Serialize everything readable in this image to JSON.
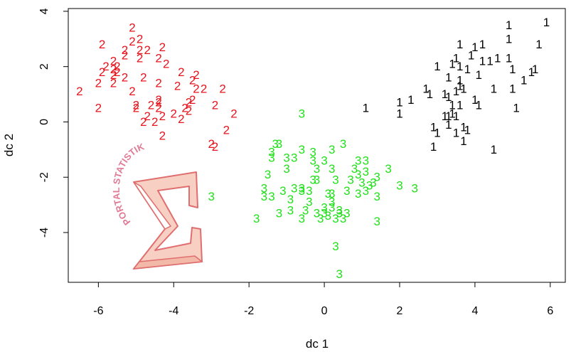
{
  "chart_data": {
    "type": "scatter",
    "title": "",
    "xlabel": "dc 1",
    "ylabel": "dc 2",
    "xlim": [
      -6.8,
      6.4
    ],
    "ylim": [
      -5.8,
      4.1
    ],
    "x_ticks": [
      -6,
      -4,
      -2,
      0,
      2,
      4,
      6
    ],
    "y_ticks": [
      -4,
      -2,
      0,
      2,
      4
    ],
    "x_tick_labels": [
      "-6",
      "-4",
      "-2",
      "0",
      "2",
      "4",
      "6"
    ],
    "y_tick_labels": [
      "-4",
      "-2",
      "0",
      "2",
      "4"
    ],
    "grid": false,
    "legend": "none",
    "series": [
      {
        "label": "1",
        "color": "#000000",
        "points": [
          [
            5.9,
            3.6
          ],
          [
            4.9,
            3.5
          ],
          [
            4.9,
            3.0
          ],
          [
            5.7,
            2.8
          ],
          [
            4.2,
            2.8
          ],
          [
            4.0,
            2.7
          ],
          [
            3.6,
            2.8
          ],
          [
            3.9,
            2.4
          ],
          [
            4.2,
            2.2
          ],
          [
            4.4,
            2.2
          ],
          [
            4.6,
            2.3
          ],
          [
            4.9,
            2.3
          ],
          [
            3.5,
            2.3
          ],
          [
            3.4,
            2.1
          ],
          [
            3.6,
            2.0
          ],
          [
            3.0,
            2.0
          ],
          [
            3.8,
            1.9
          ],
          [
            4.1,
            1.7
          ],
          [
            5.0,
            1.9
          ],
          [
            5.6,
            1.9
          ],
          [
            5.5,
            1.8
          ],
          [
            5.3,
            1.5
          ],
          [
            3.3,
            1.6
          ],
          [
            3.6,
            1.5
          ],
          [
            3.6,
            1.3
          ],
          [
            3.7,
            1.2
          ],
          [
            3.5,
            1.1
          ],
          [
            2.7,
            1.2
          ],
          [
            2.8,
            1.0
          ],
          [
            3.2,
            1.0
          ],
          [
            4.5,
            1.2
          ],
          [
            5.0,
            1.2
          ],
          [
            3.3,
            0.9
          ],
          [
            3.4,
            0.6
          ],
          [
            3.6,
            0.6
          ],
          [
            4.0,
            0.8
          ],
          [
            4.1,
            0.6
          ],
          [
            2.3,
            0.8
          ],
          [
            2.0,
            0.7
          ],
          [
            1.1,
            0.5
          ],
          [
            2.0,
            0.3
          ],
          [
            3.2,
            0.2
          ],
          [
            3.3,
            0.2
          ],
          [
            3.4,
            0.3
          ],
          [
            3.5,
            0.2
          ],
          [
            5.1,
            0.5
          ],
          [
            2.9,
            -0.2
          ],
          [
            3.3,
            -0.1
          ],
          [
            3.7,
            -0.2
          ],
          [
            3.0,
            -0.4
          ],
          [
            3.5,
            -0.4
          ],
          [
            3.8,
            -0.3
          ],
          [
            3.7,
            -0.7
          ],
          [
            4.5,
            -1.0
          ],
          [
            2.9,
            -0.9
          ]
        ]
      },
      {
        "label": "2",
        "color": "#e8141d",
        "points": [
          [
            -5.1,
            3.4
          ],
          [
            -4.9,
            3.0
          ],
          [
            -5.1,
            2.9
          ],
          [
            -5.9,
            2.8
          ],
          [
            -5.3,
            2.6
          ],
          [
            -4.9,
            2.6
          ],
          [
            -4.7,
            2.6
          ],
          [
            -4.3,
            2.7
          ],
          [
            -5.3,
            2.4
          ],
          [
            -5.6,
            2.2
          ],
          [
            -4.9,
            2.3
          ],
          [
            -4.4,
            2.3
          ],
          [
            -5.8,
            2.0
          ],
          [
            -5.5,
            2.0
          ],
          [
            -5.6,
            1.9
          ],
          [
            -5.5,
            1.8
          ],
          [
            -4.2,
            2.1
          ],
          [
            -5.9,
            1.8
          ],
          [
            -5.6,
            1.7
          ],
          [
            -3.8,
            1.8
          ],
          [
            -3.4,
            1.7
          ],
          [
            -5.3,
            1.6
          ],
          [
            -4.8,
            1.6
          ],
          [
            -6.0,
            1.4
          ],
          [
            -5.6,
            1.4
          ],
          [
            -3.5,
            1.5
          ],
          [
            -4.4,
            1.4
          ],
          [
            -3.9,
            1.3
          ],
          [
            -6.5,
            1.1
          ],
          [
            -5.1,
            1.1
          ],
          [
            -3.4,
            1.2
          ],
          [
            -3.2,
            1.2
          ],
          [
            -2.7,
            1.2
          ],
          [
            -4.4,
            0.8
          ],
          [
            -4.4,
            0.7
          ],
          [
            -3.6,
            0.7
          ],
          [
            -3.5,
            0.8
          ],
          [
            -5.0,
            0.6
          ],
          [
            -4.6,
            0.6
          ],
          [
            -5.0,
            0.5
          ],
          [
            -4.4,
            0.5
          ],
          [
            -3.7,
            0.5
          ],
          [
            -4.0,
            0.3
          ],
          [
            -3.6,
            0.4
          ],
          [
            -6.0,
            0.5
          ],
          [
            -2.9,
            0.6
          ],
          [
            -4.3,
            0.2
          ],
          [
            -4.7,
            0.2
          ],
          [
            -3.8,
            0.1
          ],
          [
            -4.8,
            0.0
          ],
          [
            -4.5,
            0.0
          ],
          [
            -2.4,
            0.3
          ],
          [
            -2.6,
            -0.3
          ],
          [
            -4.3,
            -0.5
          ],
          [
            -3.0,
            -0.8
          ],
          [
            -2.9,
            -0.9
          ]
        ]
      },
      {
        "label": "3",
        "color": "#22e01c",
        "points": [
          [
            -0.6,
            0.3
          ],
          [
            -1.2,
            -0.8
          ],
          [
            -1.3,
            -0.8
          ],
          [
            -1.4,
            -1.1
          ],
          [
            -1.4,
            -1.3
          ],
          [
            -0.6,
            -1.0
          ],
          [
            -0.3,
            -1.1
          ],
          [
            0.2,
            -1.0
          ],
          [
            0.5,
            -0.8
          ],
          [
            -1.0,
            -1.3
          ],
          [
            -0.8,
            -1.3
          ],
          [
            -0.3,
            -1.4
          ],
          [
            0.0,
            -1.4
          ],
          [
            0.9,
            -1.4
          ],
          [
            1.1,
            -1.4
          ],
          [
            -1.0,
            -1.7
          ],
          [
            -0.2,
            -1.7
          ],
          [
            0.2,
            -1.7
          ],
          [
            0.8,
            -1.7
          ],
          [
            1.1,
            -1.8
          ],
          [
            0.9,
            -1.9
          ],
          [
            1.4,
            -2.0
          ],
          [
            1.7,
            -1.7
          ],
          [
            -1.5,
            -1.9
          ],
          [
            -0.3,
            -2.1
          ],
          [
            -0.2,
            -2.1
          ],
          [
            0.3,
            -2.1
          ],
          [
            0.7,
            -2.1
          ],
          [
            1.0,
            -2.2
          ],
          [
            1.2,
            -2.3
          ],
          [
            1.3,
            -2.2
          ],
          [
            2.0,
            -2.3
          ],
          [
            2.4,
            -2.4
          ],
          [
            -1.6,
            -2.4
          ],
          [
            -1.1,
            -2.5
          ],
          [
            -0.8,
            -2.4
          ],
          [
            -0.6,
            -2.4
          ],
          [
            -0.6,
            -2.5
          ],
          [
            -0.4,
            -2.5
          ],
          [
            0.1,
            -2.6
          ],
          [
            0.2,
            -2.6
          ],
          [
            0.6,
            -2.5
          ],
          [
            0.9,
            -2.6
          ],
          [
            1.1,
            -2.5
          ],
          [
            1.4,
            -2.7
          ],
          [
            -3.0,
            -2.7
          ],
          [
            -1.6,
            -2.7
          ],
          [
            -1.4,
            -2.7
          ],
          [
            -0.9,
            -2.8
          ],
          [
            -0.4,
            -2.9
          ],
          [
            0.2,
            -2.9
          ],
          [
            -0.5,
            -3.2
          ],
          [
            0.0,
            -3.1
          ],
          [
            0.2,
            -3.1
          ],
          [
            0.4,
            -3.2
          ],
          [
            0.4,
            -3.3
          ],
          [
            0.6,
            -3.3
          ],
          [
            -1.2,
            -3.3
          ],
          [
            -0.9,
            -3.2
          ],
          [
            -0.2,
            -3.3
          ],
          [
            0.0,
            -3.3
          ],
          [
            0.1,
            -3.4
          ],
          [
            -1.8,
            -3.5
          ],
          [
            -0.6,
            -3.5
          ],
          [
            -0.1,
            -3.5
          ],
          [
            0.3,
            -3.5
          ],
          [
            0.5,
            -3.5
          ],
          [
            1.4,
            -3.6
          ],
          [
            0.3,
            -4.5
          ],
          [
            0.4,
            -5.5
          ]
        ]
      }
    ],
    "annotations": [
      "PORTAL STATISTIK"
    ]
  }
}
